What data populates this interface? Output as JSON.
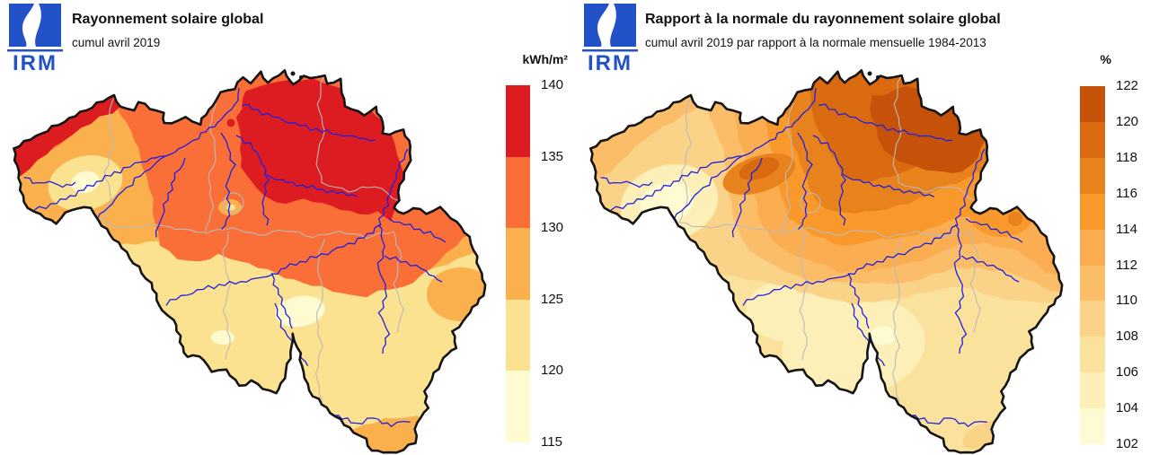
{
  "region": "Belgium",
  "logo": {
    "text": "IRM",
    "color": "#2152C8"
  },
  "map_style": {
    "outline_color": "#141414",
    "river_color": "#2020DF",
    "province_border_color": "#BBBBBB"
  },
  "panels": [
    {
      "id": "radiation",
      "title": "Rayonnement solaire global",
      "subtitle": "cumul avril 2019",
      "unit": "kWh/m²",
      "colorbar": {
        "ticks_top_to_bottom": [
          "140",
          "135",
          "130",
          "125",
          "120",
          "115"
        ],
        "colors_top_to_bottom": [
          "#DC1C20",
          "#FA6E38",
          "#FBB04E",
          "#FAE291",
          "#FEFBD0"
        ]
      }
    },
    {
      "id": "ratio-to-normal",
      "title": "Rapport à la normale du rayonnement solaire global",
      "subtitle": "cumul avril 2019 par rapport à la normale mensuelle 1984-2013",
      "unit": "%",
      "colorbar": {
        "ticks_top_to_bottom": [
          "122",
          "120",
          "118",
          "116",
          "114",
          "112",
          "110",
          "108",
          "106",
          "104",
          "102"
        ],
        "colors_top_to_bottom": [
          "#C6520A",
          "#D96A10",
          "#E8821C",
          "#FA992B",
          "#FBAD52",
          "#FCBD69",
          "#FAD389",
          "#FAE29C",
          "#FCEFB8",
          "#FEFBD2"
        ]
      }
    }
  ]
}
